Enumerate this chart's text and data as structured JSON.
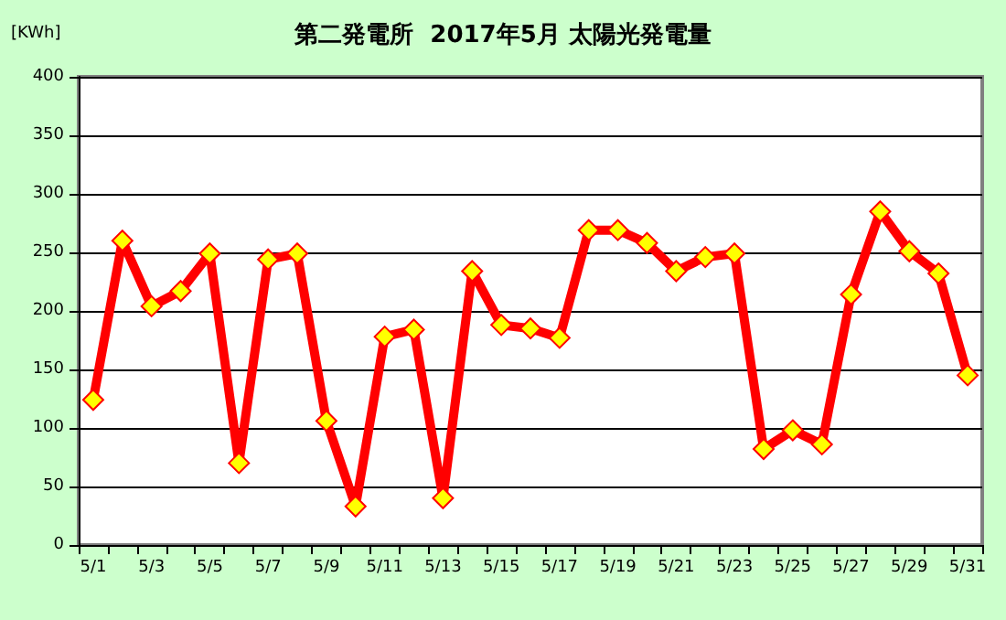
{
  "chart_data": {
    "type": "line",
    "title": "第二発電所  2017年5月 太陽光発電量",
    "ylabel": "[KWh]",
    "categories": [
      "5/1",
      null,
      "5/3",
      null,
      "5/5",
      null,
      "5/7",
      null,
      "5/9",
      null,
      "5/11",
      null,
      "5/13",
      null,
      "5/15",
      null,
      "5/17",
      null,
      "5/19",
      null,
      "5/21",
      null,
      "5/23",
      null,
      "5/25",
      null,
      "5/27",
      null,
      "5/29",
      null,
      "5/31"
    ],
    "series": [
      {
        "color": "#ff0000",
        "values": [
          124,
          260,
          204,
          217,
          249,
          70,
          244,
          249,
          106,
          33,
          178,
          184,
          40,
          234,
          188,
          185,
          177,
          269,
          269,
          258,
          234,
          246,
          249,
          82,
          98,
          86,
          214,
          285,
          251,
          232,
          145
        ]
      }
    ],
    "ylim": [
      0,
      400
    ],
    "yticks": [
      0,
      50,
      100,
      150,
      200,
      250,
      300,
      350,
      400
    ],
    "grid": "y",
    "marker": "diamond",
    "line_style": "solid"
  }
}
